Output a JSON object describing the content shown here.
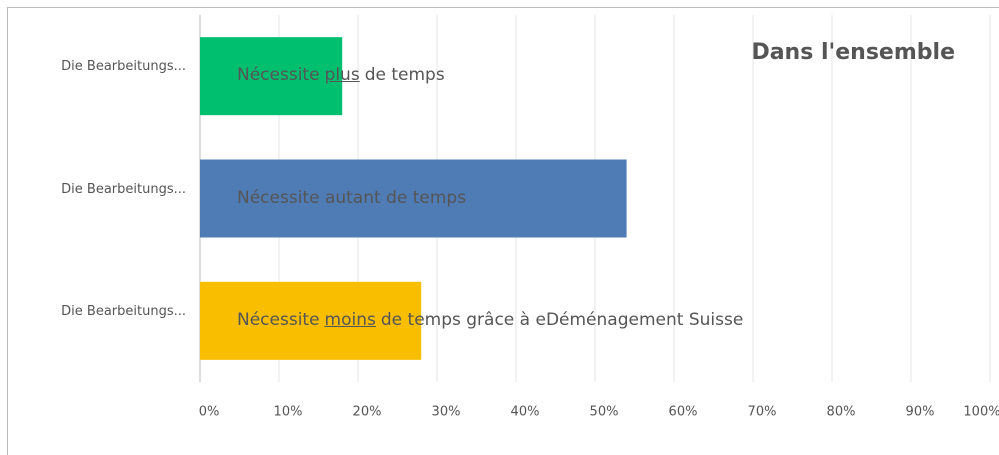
{
  "chart_data": {
    "type": "bar",
    "orientation": "horizontal",
    "title": "Dans l'ensemble",
    "categories": [
      "Die Bearbeitungs...",
      "Die Bearbeitungs...",
      "Die Bearbeitungs..."
    ],
    "values": [
      18,
      54,
      28
    ],
    "colors": [
      "#00bf6f",
      "#507cb6",
      "#f9be00"
    ],
    "annotations": [
      {
        "before": "Nécessite",
        "emphasis": "plus",
        "after": "de temps"
      },
      {
        "before": "Nécessite autant de temps"
      },
      {
        "before": "Nécessite",
        "emphasis": "moins",
        "after": "de temps grâce à eDéménagement Suisse"
      }
    ],
    "xlim": [
      0,
      100
    ],
    "xticks": [
      {
        "value": 0,
        "label": "0%"
      },
      {
        "value": 10,
        "label": "10%"
      },
      {
        "value": 20,
        "label": "20%"
      },
      {
        "value": 30,
        "label": "30%"
      },
      {
        "value": 40,
        "label": "40%"
      },
      {
        "value": 50,
        "label": "50%"
      },
      {
        "value": 60,
        "label": "60%"
      },
      {
        "value": 70,
        "label": "70%"
      },
      {
        "value": 80,
        "label": "80%"
      },
      {
        "value": 90,
        "label": "90%"
      },
      {
        "value": 100,
        "label": "100%"
      }
    ],
    "grid": true
  }
}
